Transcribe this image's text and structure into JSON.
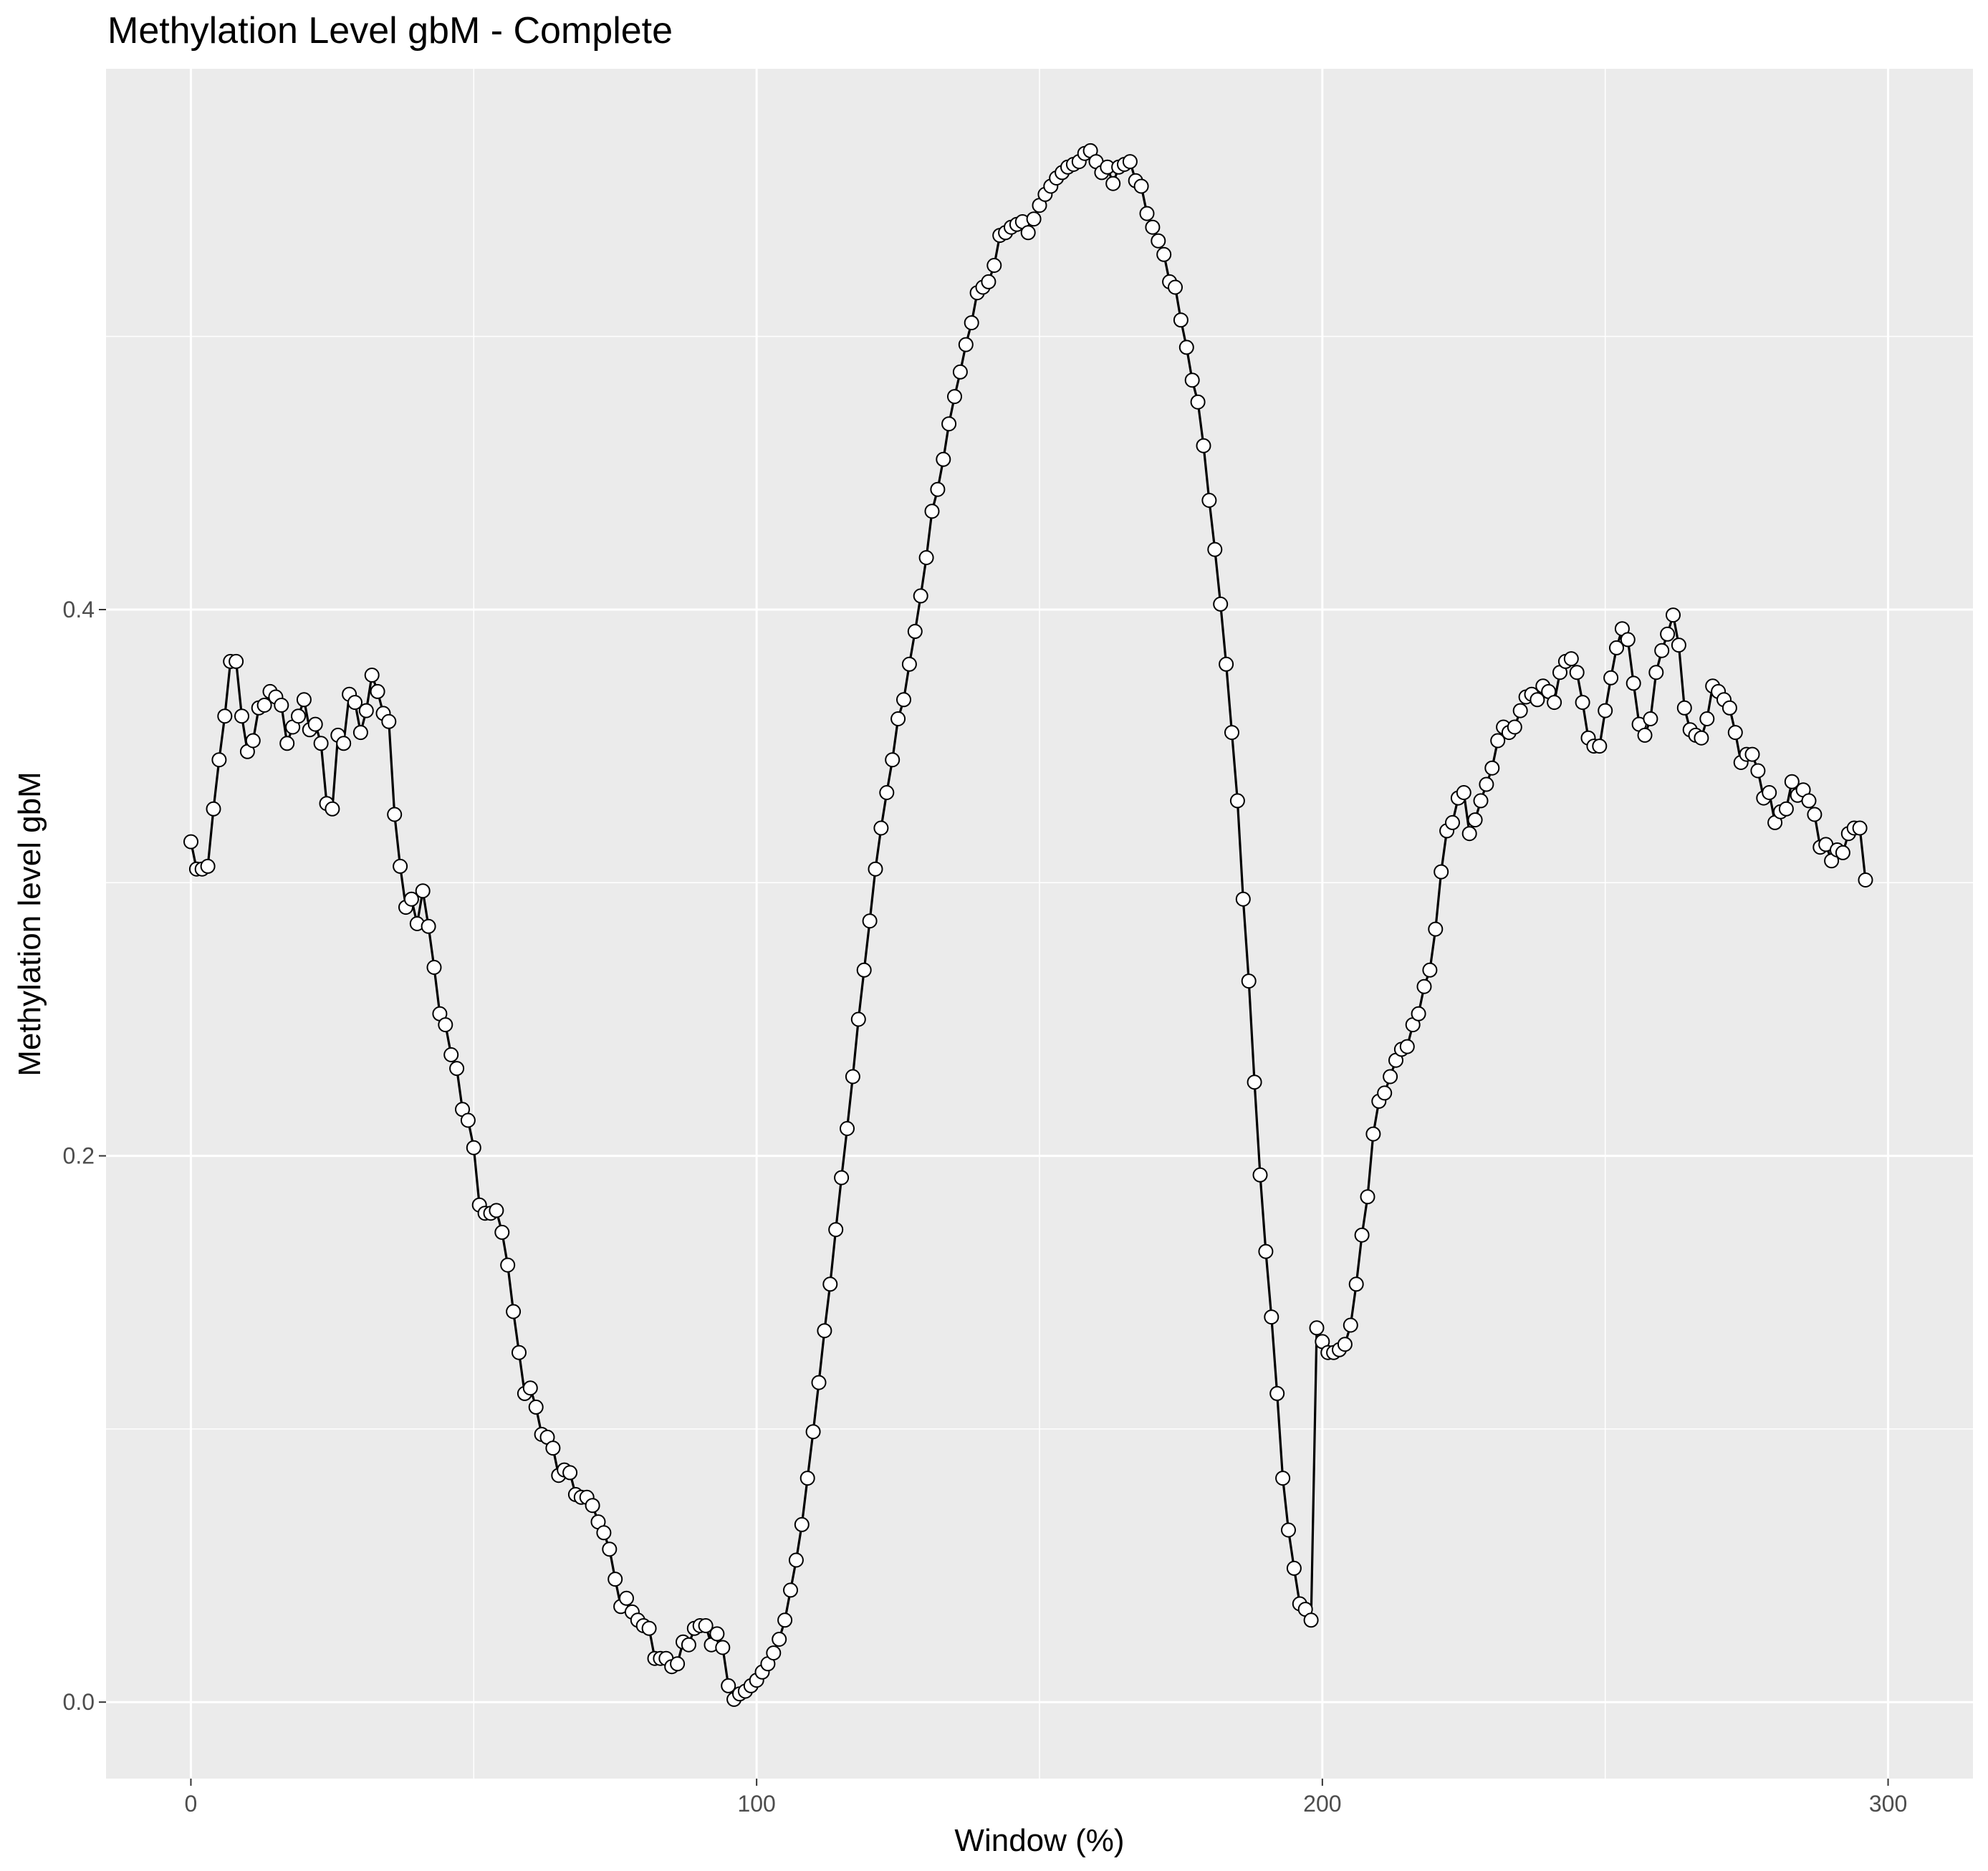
{
  "chart_data": {
    "type": "line",
    "title": "Methylation Level gbM - Complete",
    "xlabel": "Window (%)",
    "ylabel": "Methylation level gbM",
    "xlim": [
      -15,
      315
    ],
    "ylim": [
      -0.028,
      0.598
    ],
    "x_ticks": [
      0,
      100,
      200,
      300
    ],
    "x_tick_labels": [
      "0",
      "100",
      "200",
      "300"
    ],
    "y_ticks": [
      0.0,
      0.2,
      0.4
    ],
    "y_tick_labels": [
      "0.0",
      "0.2",
      "0.4"
    ],
    "grid": true,
    "background": "#ebebeb",
    "line_color": "#000000",
    "marker_fill": "#ffffff",
    "marker_edge": "#000000",
    "series": [
      {
        "values": [
          0.315,
          0.305,
          0.305,
          0.306,
          0.327,
          0.345,
          0.361,
          0.381,
          0.381,
          0.361,
          0.348,
          0.352,
          0.364,
          0.365,
          0.37,
          0.368,
          0.365,
          0.351,
          0.357,
          0.361,
          0.367,
          0.356,
          0.358,
          0.351,
          0.329,
          0.327,
          0.354,
          0.351,
          0.369,
          0.366,
          0.355,
          0.363,
          0.376,
          0.37,
          0.362,
          0.359,
          0.325,
          0.306,
          0.291,
          0.294,
          0.285,
          0.297,
          0.284,
          0.269,
          0.252,
          0.248,
          0.237,
          0.232,
          0.217,
          0.213,
          0.203,
          0.182,
          0.179,
          0.179,
          0.18,
          0.172,
          0.16,
          0.143,
          0.128,
          0.113,
          0.115,
          0.108,
          0.098,
          0.097,
          0.093,
          0.083,
          0.085,
          0.084,
          0.076,
          0.075,
          0.075,
          0.072,
          0.066,
          0.062,
          0.056,
          0.045,
          0.035,
          0.038,
          0.033,
          0.03,
          0.028,
          0.027,
          0.016,
          0.016,
          0.016,
          0.013,
          0.014,
          0.022,
          0.021,
          0.027,
          0.028,
          0.028,
          0.021,
          0.025,
          0.02,
          0.006,
          0.001,
          0.003,
          0.004,
          0.006,
          0.008,
          0.011,
          0.014,
          0.018,
          0.023,
          0.03,
          0.041,
          0.052,
          0.065,
          0.082,
          0.099,
          0.117,
          0.136,
          0.153,
          0.173,
          0.192,
          0.21,
          0.229,
          0.25,
          0.268,
          0.286,
          0.305,
          0.32,
          0.333,
          0.345,
          0.36,
          0.367,
          0.38,
          0.392,
          0.405,
          0.419,
          0.436,
          0.444,
          0.455,
          0.468,
          0.478,
          0.487,
          0.497,
          0.505,
          0.516,
          0.518,
          0.52,
          0.526,
          0.537,
          0.538,
          0.54,
          0.541,
          0.542,
          0.538,
          0.543,
          0.548,
          0.552,
          0.555,
          0.558,
          0.56,
          0.562,
          0.563,
          0.564,
          0.567,
          0.568,
          0.564,
          0.56,
          0.562,
          0.556,
          0.562,
          0.563,
          0.564,
          0.557,
          0.555,
          0.545,
          0.54,
          0.535,
          0.53,
          0.52,
          0.518,
          0.506,
          0.496,
          0.484,
          0.476,
          0.46,
          0.44,
          0.422,
          0.402,
          0.38,
          0.355,
          0.33,
          0.294,
          0.264,
          0.227,
          0.193,
          0.165,
          0.141,
          0.113,
          0.082,
          0.063,
          0.049,
          0.036,
          0.034,
          0.03,
          0.137,
          0.132,
          0.128,
          0.128,
          0.129,
          0.131,
          0.138,
          0.153,
          0.171,
          0.185,
          0.208,
          0.22,
          0.223,
          0.229,
          0.235,
          0.239,
          0.24,
          0.248,
          0.252,
          0.262,
          0.268,
          0.283,
          0.304,
          0.319,
          0.322,
          0.331,
          0.333,
          0.318,
          0.323,
          0.33,
          0.336,
          0.342,
          0.352,
          0.357,
          0.355,
          0.357,
          0.363,
          0.368,
          0.369,
          0.367,
          0.372,
          0.37,
          0.366,
          0.377,
          0.381,
          0.382,
          0.377,
          0.366,
          0.353,
          0.35,
          0.35,
          0.363,
          0.375,
          0.386,
          0.393,
          0.389,
          0.373,
          0.358,
          0.354,
          0.36,
          0.377,
          0.385,
          0.391,
          0.398,
          0.387,
          0.364,
          0.356,
          0.354,
          0.353,
          0.36,
          0.372,
          0.37,
          0.367,
          0.364,
          0.355,
          0.344,
          0.347,
          0.347,
          0.341,
          0.331,
          0.333,
          0.322,
          0.326,
          0.327,
          0.337,
          0.332,
          0.334,
          0.33,
          0.325,
          0.313,
          0.314,
          0.308,
          0.312,
          0.311,
          0.318,
          0.32,
          0.32,
          0.301
        ]
      }
    ]
  }
}
